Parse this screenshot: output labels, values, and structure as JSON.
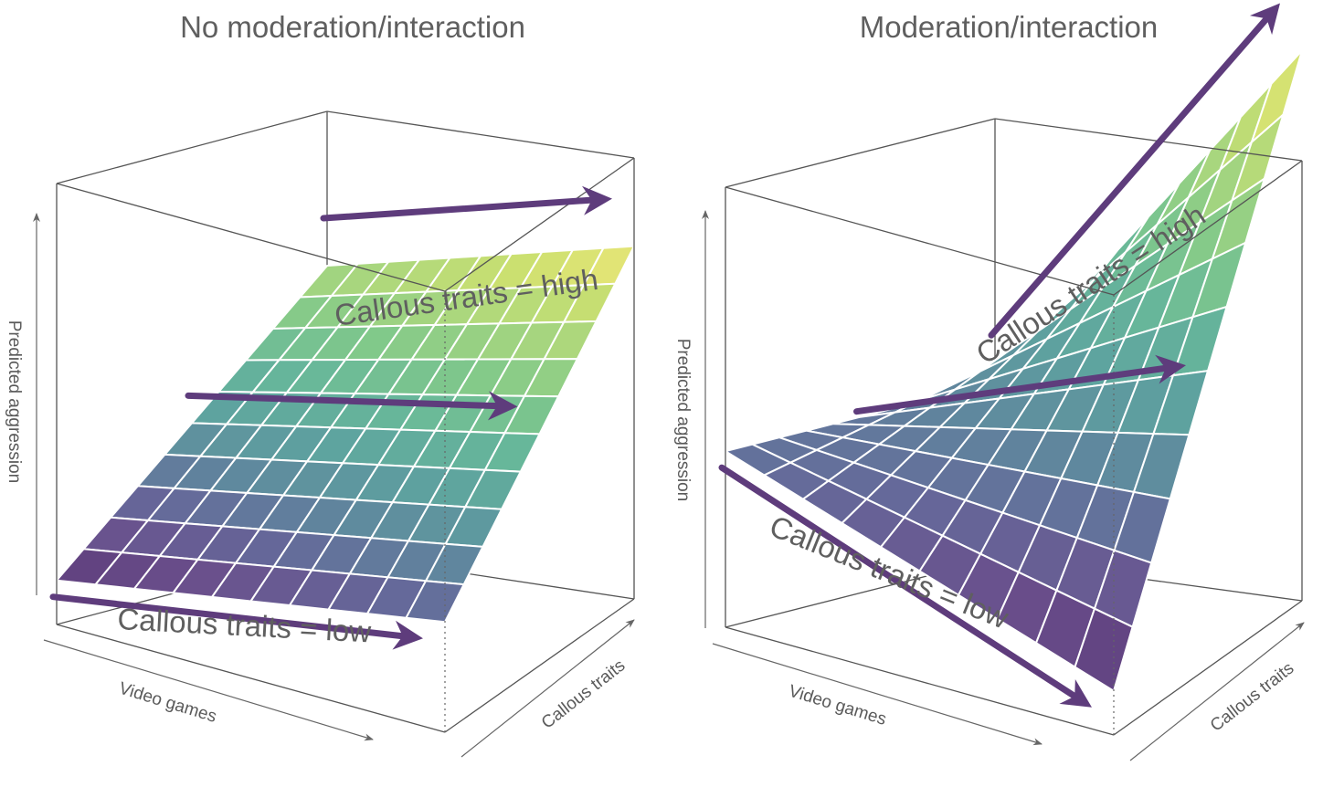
{
  "chart_data": [
    {
      "type": "surface3d",
      "title": "No moderation/interaction",
      "xlabel": "Video games",
      "ylabel": "Callous traits",
      "zlabel": "Predicted aggression",
      "grid_size": 10,
      "model": {
        "intercept": 0.1,
        "b_videogames": 0.15,
        "b_callous": 0.55,
        "b_interaction": 0.0
      },
      "zlim": [
        0,
        1
      ],
      "colormap": "viridis",
      "annotations": [
        {
          "text": "Callous traits = high",
          "arrow_from": [
            0,
            1
          ],
          "arrow_to": [
            1,
            1
          ],
          "color": "#5e3c7c"
        },
        {
          "text": "",
          "arrow_from": [
            0,
            0.5
          ],
          "arrow_to": [
            1,
            0.5
          ],
          "color": "#5e3c7c"
        },
        {
          "text": "Callous traits = low",
          "arrow_from": [
            0,
            0
          ],
          "arrow_to": [
            1,
            0
          ],
          "color": "#5e3c7c"
        }
      ]
    },
    {
      "type": "surface3d",
      "title": "Moderation/interaction",
      "xlabel": "Video games",
      "ylabel": "Callous traits",
      "zlabel": "Predicted aggression",
      "grid_size": 10,
      "model": {
        "intercept": 0.4,
        "b_videogames": -0.3,
        "b_callous": 0.0,
        "b_interaction": 1.15
      },
      "zlim": [
        0,
        1
      ],
      "colormap": "viridis",
      "annotations": [
        {
          "text": "Callous traits = high",
          "arrow_from": [
            0,
            1
          ],
          "arrow_to": [
            1,
            1
          ],
          "color": "#5e3c7c"
        },
        {
          "text": "",
          "arrow_from": [
            0,
            0.5
          ],
          "arrow_to": [
            1,
            0.5
          ],
          "color": "#5e3c7c"
        },
        {
          "text": "Callous traits = low",
          "arrow_from": [
            0,
            0
          ],
          "arrow_to": [
            1,
            0
          ],
          "color": "#5e3c7c"
        }
      ]
    }
  ],
  "viridis": [
    "#5b3a78",
    "#6a4f8c",
    "#65699a",
    "#5f8a9e",
    "#5ea39f",
    "#67b79a",
    "#82c98a",
    "#a8d67e",
    "#cce070",
    "#f2e879"
  ],
  "arrow_color": "#5e3c7c"
}
